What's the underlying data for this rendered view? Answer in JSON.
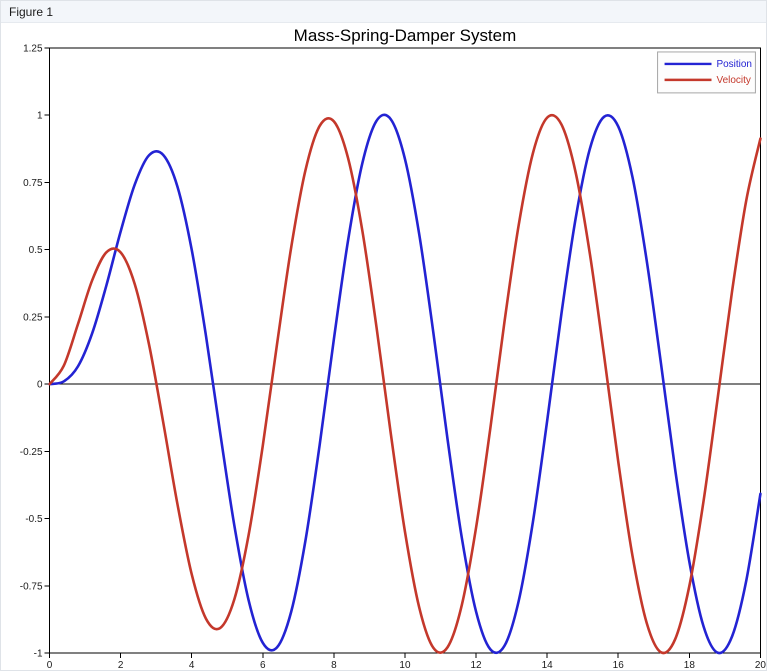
{
  "window": {
    "title": "Figure 1"
  },
  "chart_data": {
    "type": "line",
    "title": "Mass-Spring-Damper System",
    "xlabel": "",
    "ylabel": "",
    "xlim": [
      0,
      20
    ],
    "ylim": [
      -1,
      1.25
    ],
    "x_ticks": [
      0,
      2,
      4,
      6,
      8,
      10,
      12,
      14,
      16,
      18,
      20
    ],
    "y_ticks": [
      1.25,
      1,
      0.75,
      0.5,
      0.25,
      0,
      -0.25,
      -0.5,
      -0.75,
      -1
    ],
    "grid": false,
    "zero_line": true,
    "legend_position": "upper right",
    "x": [
      0,
      0.4,
      0.8,
      1.2,
      1.6,
      2,
      2.4,
      2.8,
      3.2,
      3.6,
      4,
      4.4,
      4.8,
      5.2,
      5.6,
      6,
      6.4,
      6.8,
      7.2,
      7.6,
      8,
      8.4,
      8.8,
      9.2,
      9.6,
      10,
      10.4,
      10.8,
      11.2,
      11.6,
      12,
      12.4,
      12.8,
      13.2,
      13.6,
      14,
      14.4,
      14.8,
      15.2,
      15.6,
      16,
      16.4,
      16.8,
      17.2,
      17.6,
      18,
      18.4,
      18.8,
      19.2,
      19.6,
      20
    ],
    "series": [
      {
        "name": "Position",
        "color": "#2323D3",
        "values": [
          0,
          0.01,
          0.066,
          0.189,
          0.367,
          0.567,
          0.743,
          0.851,
          0.852,
          0.734,
          0.5,
          0.181,
          -0.18,
          -0.526,
          -0.803,
          -0.962,
          -0.979,
          -0.846,
          -0.582,
          -0.226,
          0.167,
          0.535,
          0.821,
          0.979,
          0.985,
          0.837,
          0.558,
          0.19,
          -0.207,
          -0.572,
          -0.846,
          -0.986,
          -0.973,
          -0.806,
          -0.512,
          -0.137,
          0.26,
          0.615,
          0.874,
          0.994,
          0.958,
          0.77,
          0.46,
          0.079,
          -0.316,
          -0.66,
          -0.901,
          -0.999,
          -0.939,
          -0.732,
          -0.408
        ]
      },
      {
        "name": "Velocity",
        "color": "#C4382B",
        "values": [
          0,
          0.068,
          0.223,
          0.386,
          0.49,
          0.49,
          0.371,
          0.147,
          -0.143,
          -0.447,
          -0.707,
          -0.872,
          -0.907,
          -0.8,
          -0.562,
          -0.229,
          0.148,
          0.509,
          0.795,
          0.96,
          0.977,
          0.84,
          0.571,
          0.211,
          -0.183,
          -0.549,
          -0.83,
          -0.981,
          -0.978,
          -0.821,
          -0.534,
          -0.166,
          0.232,
          0.592,
          0.859,
          0.991,
          0.966,
          0.788,
          0.486,
          0.108,
          -0.288,
          -0.638,
          -0.888,
          -0.997,
          -0.949,
          -0.751,
          -0.435,
          -0.05,
          0.343,
          0.682,
          0.913
        ]
      }
    ],
    "colors": {
      "spine": "#000000",
      "zero_line": "#000000",
      "legend_border": "#a6a6a6",
      "legend_fill": "#fdfdfd"
    }
  }
}
